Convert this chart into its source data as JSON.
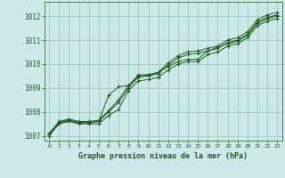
{
  "title": "Graphe pression niveau de la mer (hPa)",
  "xlim": [
    -0.5,
    23.5
  ],
  "ylim": [
    1006.8,
    1012.6
  ],
  "yticks": [
    1007,
    1008,
    1009,
    1010,
    1011,
    1012
  ],
  "xticks": [
    0,
    1,
    2,
    3,
    4,
    5,
    6,
    7,
    8,
    9,
    10,
    11,
    12,
    13,
    14,
    15,
    16,
    17,
    18,
    19,
    20,
    21,
    22,
    23
  ],
  "background_color": "#cce8e8",
  "grid_color": "#99ccbb",
  "line_color": "#1a5c1a",
  "series": [
    [
      1007.1,
      1007.6,
      1007.7,
      1007.6,
      1007.6,
      1007.65,
      1008.05,
      1008.5,
      1009.1,
      1009.55,
      1009.55,
      1009.65,
      1010.05,
      1010.35,
      1010.5,
      1010.55,
      1010.65,
      1010.75,
      1011.0,
      1011.1,
      1011.35,
      1011.85,
      1012.05,
      1012.15
    ],
    [
      1007.05,
      1007.55,
      1007.65,
      1007.55,
      1007.55,
      1007.6,
      1008.0,
      1008.4,
      1009.0,
      1009.45,
      1009.5,
      1009.6,
      1009.95,
      1010.25,
      1010.4,
      1010.45,
      1010.55,
      1010.65,
      1010.9,
      1011.0,
      1011.25,
      1011.75,
      1011.95,
      1012.05
    ],
    [
      1007.1,
      1007.55,
      1007.65,
      1007.55,
      1007.55,
      1007.6,
      1008.7,
      1009.05,
      1009.1,
      1009.5,
      1009.55,
      1009.65,
      1009.9,
      1010.1,
      1010.2,
      1010.2,
      1010.55,
      1010.7,
      1010.85,
      1010.95,
      1011.2,
      1011.7,
      1011.9,
      1012.0
    ],
    [
      1007.0,
      1007.5,
      1007.6,
      1007.5,
      1007.5,
      1007.5,
      1007.85,
      1008.1,
      1008.9,
      1009.3,
      1009.35,
      1009.45,
      1009.75,
      1010.0,
      1010.1,
      1010.1,
      1010.4,
      1010.5,
      1010.75,
      1010.85,
      1011.1,
      1011.6,
      1011.8,
      1011.9
    ]
  ]
}
